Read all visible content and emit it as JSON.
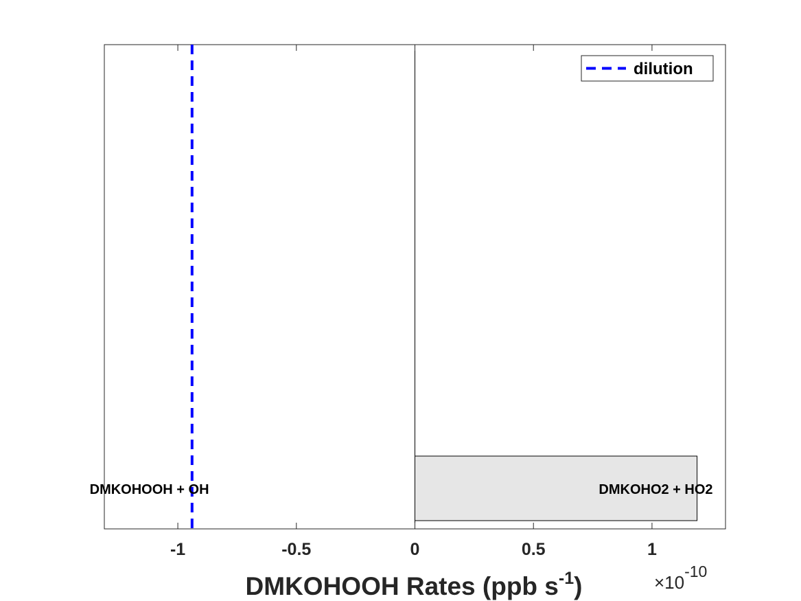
{
  "chart_data": {
    "type": "bar",
    "orientation": "horizontal",
    "xlim": [
      -1.31,
      1.31
    ],
    "x_scale_exponent": -10,
    "xticks": [
      -1,
      -0.5,
      0,
      0.5,
      1
    ],
    "xtick_labels": [
      "-1",
      "-0.5",
      "0",
      "0.5",
      "1"
    ],
    "xlabel_main": "DMKOHOOH Rates (ppb s",
    "xlabel_sup": "-1",
    "xlabel_close": ")",
    "exponent_label": {
      "times": "×10",
      "power": "-10"
    },
    "categories": [
      "DMKOHOOH + OH",
      "DMKOHO2 + HO2"
    ],
    "bars": [
      {
        "label": "DMKOHO2 + HO2",
        "start": 0,
        "value": 1.19
      }
    ],
    "text_labels": [
      {
        "text": "DMKOHOOH + OH",
        "x_anchor": -0.935
      },
      {
        "text": "DMKOHO2 + HO2",
        "x_anchor": 1.19
      }
    ],
    "reference_line": {
      "name": "dilution",
      "x": -0.94,
      "style": "dashed",
      "color": "#0000ff"
    },
    "legend": {
      "entries": [
        "dilution"
      ],
      "location": "top-right"
    },
    "bar_color": "#e6e6e6",
    "grid": false
  }
}
